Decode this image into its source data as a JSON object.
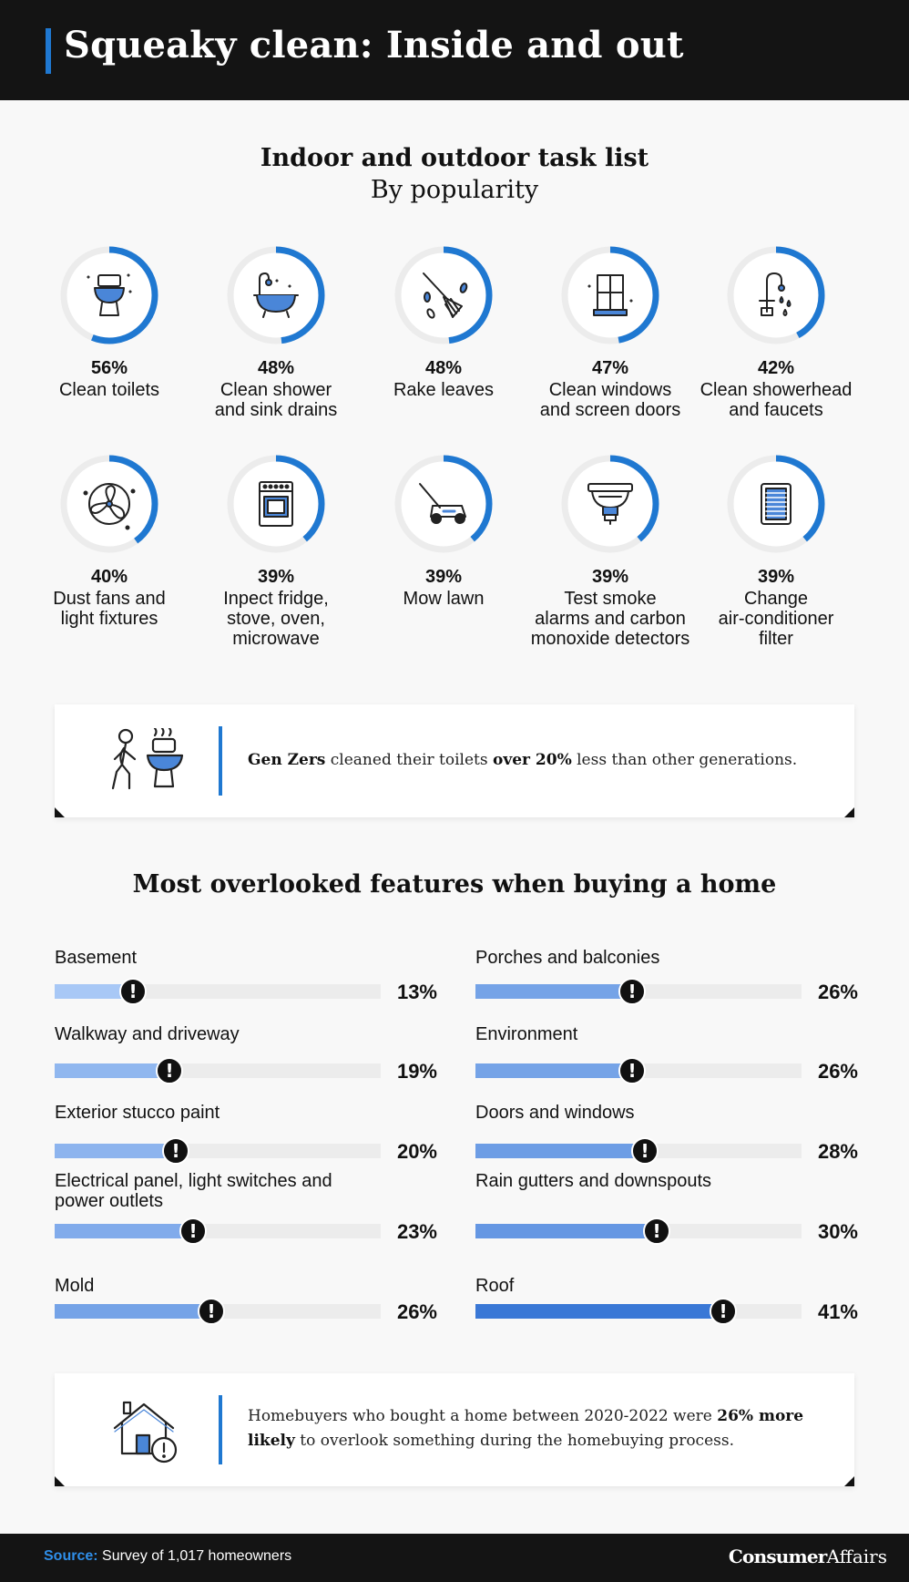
{
  "header": {
    "title": "Squeaky clean: Inside and out"
  },
  "tasks_section": {
    "title": "Indoor and outdoor task list",
    "subtitle": "By popularity"
  },
  "tasks": [
    {
      "pct": "56%",
      "value": 56,
      "label": "Clean toilets",
      "icon": "toilet-icon"
    },
    {
      "pct": "48%",
      "value": 48,
      "label": "Clean shower\nand sink drains",
      "icon": "bathtub-icon"
    },
    {
      "pct": "48%",
      "value": 48,
      "label": "Rake leaves",
      "icon": "rake-icon"
    },
    {
      "pct": "47%",
      "value": 47,
      "label": "Clean windows\nand screen doors",
      "icon": "window-icon"
    },
    {
      "pct": "42%",
      "value": 42,
      "label": "Clean showerhead\nand faucets",
      "icon": "faucet-icon"
    },
    {
      "pct": "40%",
      "value": 40,
      "label": "Dust fans and\nlight fixtures",
      "icon": "fan-icon"
    },
    {
      "pct": "39%",
      "value": 39,
      "label": "Inpect fridge,\nstove, oven,\nmicrowave",
      "icon": "stove-icon"
    },
    {
      "pct": "39%",
      "value": 39,
      "label": "Mow lawn",
      "icon": "lawnmower-icon"
    },
    {
      "pct": "39%",
      "value": 39,
      "label": "Test smoke\nalarms and carbon\nmonoxide detectors",
      "icon": "smoke-detector-icon"
    },
    {
      "pct": "39%",
      "value": 39,
      "label": "Change\nair-conditioner\nfilter",
      "icon": "air-filter-icon"
    }
  ],
  "callout1": {
    "b1": "Gen Zers",
    "t1": " cleaned their toilets ",
    "b2": "over 20%",
    "t2": " less than other generations.",
    "icon": "person-toilet-icon"
  },
  "features_section": {
    "title": "Most overlooked features when buying a home"
  },
  "features_left": [
    {
      "label": "Basement",
      "pct": "13%",
      "value": 13
    },
    {
      "label": "Walkway and driveway",
      "pct": "19%",
      "value": 19
    },
    {
      "label": "Exterior stucco paint",
      "pct": "20%",
      "value": 20
    },
    {
      "label": "Electrical panel, light switches and\npower outlets",
      "pct": "23%",
      "value": 23
    },
    {
      "label": "Mold",
      "pct": "26%",
      "value": 26
    }
  ],
  "features_right": [
    {
      "label": "Porches and balconies",
      "pct": "26%",
      "value": 26
    },
    {
      "label": "Environment",
      "pct": "26%",
      "value": 26
    },
    {
      "label": "Doors and windows",
      "pct": "28%",
      "value": 28
    },
    {
      "label": "Rain gutters and downspouts",
      "pct": "30%",
      "value": 30
    },
    {
      "label": "Roof",
      "pct": "41%",
      "value": 41
    }
  ],
  "marker_symbol": "!",
  "callout2": {
    "t1": "Homebuyers who bought a home between 2020-2022 were ",
    "b1": "26% more likely",
    "t2": " to overlook something during the homebuying process.",
    "icon": "house-alert-icon"
  },
  "footer": {
    "source_label": "Source:",
    "source_text": " Survey of 1,017 homeowners",
    "brand_bold": "Consumer",
    "brand_regular": "Affairs"
  },
  "colors": {
    "accent": "#1f78d1",
    "ring_track": "#ececec",
    "bar_light": "#a8c8f6",
    "bar_dark": "#3a78d6"
  }
}
